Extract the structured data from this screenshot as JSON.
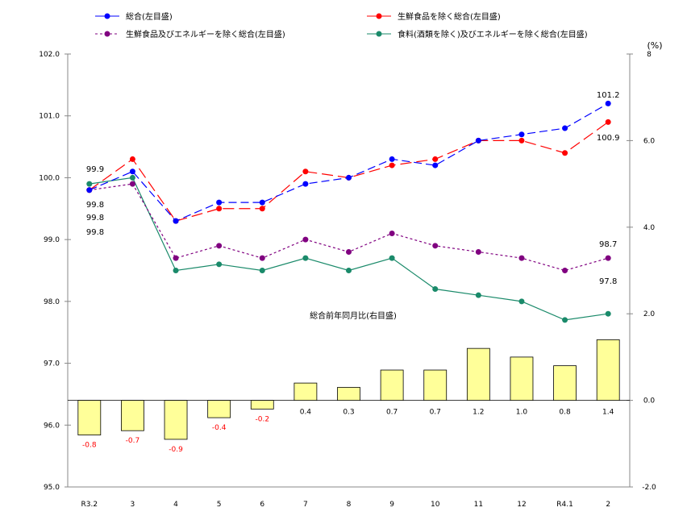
{
  "chart_data": {
    "type": "line+bar",
    "categories": [
      "R3.2",
      "3",
      "4",
      "5",
      "6",
      "7",
      "8",
      "9",
      "10",
      "11",
      "12",
      "R4.1",
      "2"
    ],
    "left_axis": {
      "ylim": [
        95.0,
        102.0
      ],
      "ticks": [
        "95.0",
        "96.0",
        "97.0",
        "98.0",
        "99.0",
        "100.0",
        "101.0",
        "102.0"
      ]
    },
    "right_axis": {
      "unit_label": "(%)",
      "ylim": [
        -2.0,
        8.0
      ],
      "ticks": [
        "-2.0",
        "0.0",
        "2.0",
        "4.0",
        "6.0",
        "8"
      ]
    },
    "series": [
      {
        "name": "総合(左目盛)",
        "color": "#0000ff",
        "style": "dash",
        "values": [
          99.8,
          100.1,
          99.3,
          99.6,
          99.6,
          99.9,
          100.0,
          100.3,
          100.2,
          100.6,
          100.7,
          100.8,
          101.2
        ],
        "labels": {
          "first": "99.8",
          "last": "101.2"
        }
      },
      {
        "name": "生鮮食品を除く総合(左目盛)",
        "color": "#ff0000",
        "style": "longdash",
        "values": [
          99.8,
          100.3,
          99.3,
          99.5,
          99.5,
          100.1,
          100.0,
          100.2,
          100.3,
          100.6,
          100.6,
          100.4,
          100.9
        ],
        "labels": {
          "first": "99.8",
          "last": "100.9"
        }
      },
      {
        "name": "生鮮食品及びエネルギーを除く総合(左目盛)",
        "color": "#800080",
        "style": "dot",
        "values": [
          99.8,
          99.9,
          98.7,
          98.9,
          98.7,
          99.0,
          98.8,
          99.1,
          98.9,
          98.8,
          98.7,
          98.5,
          98.7
        ],
        "labels": {
          "first": "99.8",
          "last": "98.7"
        }
      },
      {
        "name": "食料(酒類を除く)及びエネルギーを除く総合(左目盛)",
        "color": "#1a8a6a",
        "style": "solid",
        "values": [
          99.9,
          100.0,
          98.5,
          98.6,
          98.5,
          98.7,
          98.5,
          98.7,
          98.2,
          98.1,
          98.0,
          97.7,
          97.8
        ],
        "labels": {
          "first": "99.9",
          "last": "97.8"
        }
      }
    ],
    "bars": {
      "name": "総合前年同月比(右目盛)",
      "color": "#ffff99",
      "values": [
        -0.8,
        -0.7,
        -0.9,
        -0.4,
        -0.2,
        0.4,
        0.3,
        0.7,
        0.7,
        1.2,
        1.0,
        0.8,
        1.4
      ],
      "labels": [
        "-0.8",
        "-0.7",
        "-0.9",
        "-0.4",
        "-0.2",
        "0.4",
        "0.3",
        "0.7",
        "0.7",
        "1.2",
        "1.0",
        "0.8",
        "1.4"
      ]
    },
    "legend": "top",
    "grid": false
  }
}
